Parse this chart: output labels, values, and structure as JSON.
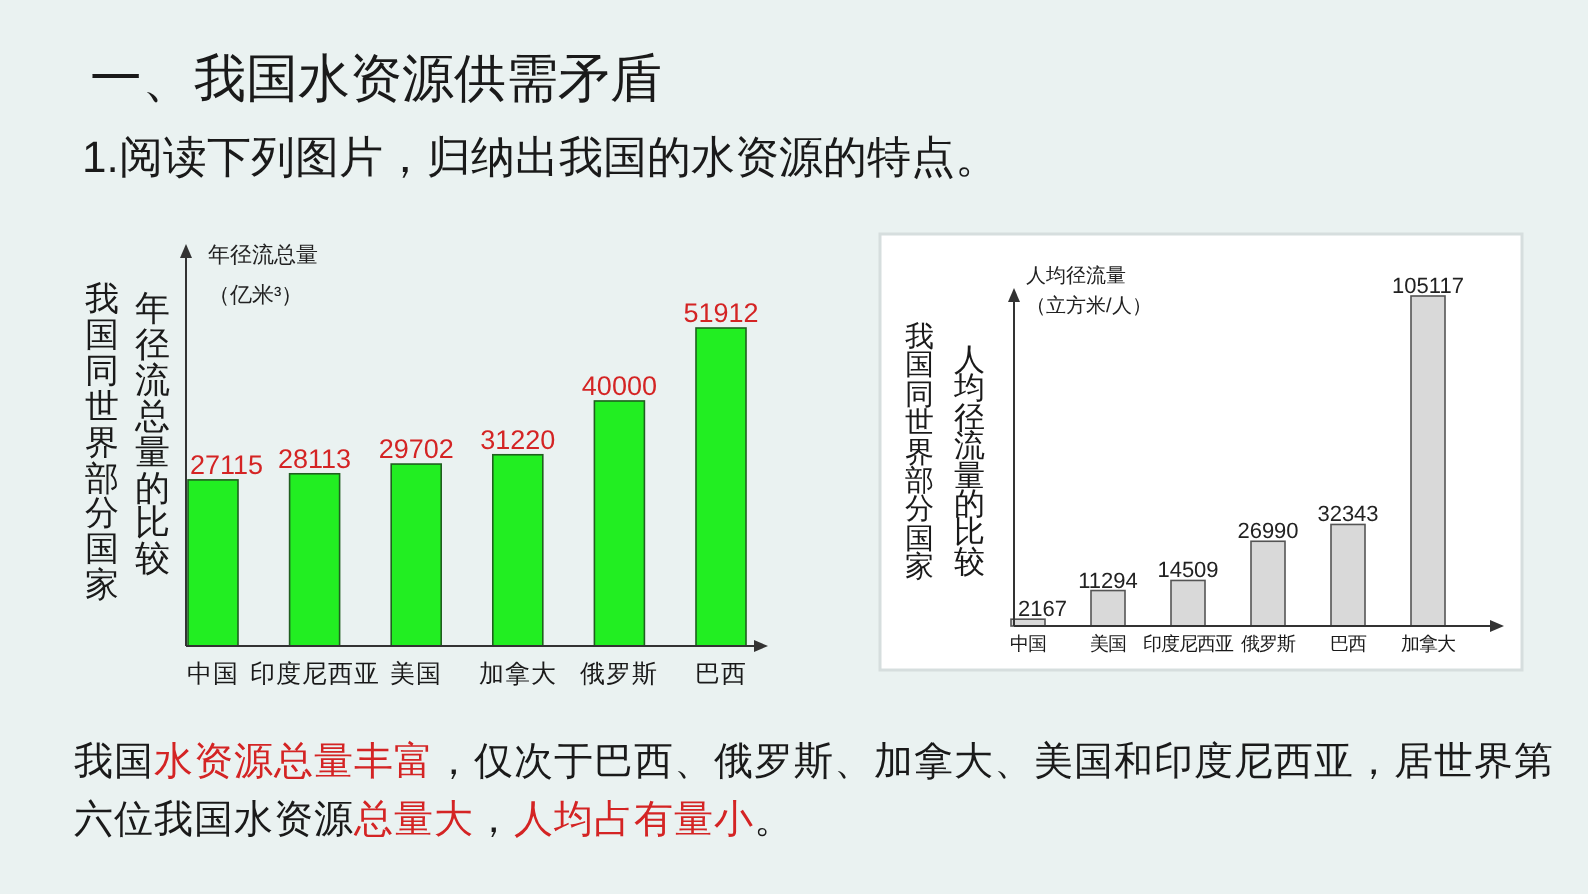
{
  "chart_data": [
    {
      "type": "bar",
      "title": "我国同世界部分国家",
      "subtitle": "年径流总量的比较",
      "ylabel": "年径流总量（亿米³）",
      "categories": [
        "中国",
        "印度尼西亚",
        "美国",
        "加拿大",
        "俄罗斯",
        "巴西"
      ],
      "values": [
        27115,
        28113,
        29702,
        31220,
        40000,
        51912
      ],
      "color": "#22ee22",
      "data_labels": true,
      "annotations": [
        "一、我国水资源供需矛盾",
        "1.阅读下列图片，归纳出我国的水资源的特点。"
      ]
    },
    {
      "type": "bar",
      "title": "我国同世界部分国家",
      "subtitle": "人均径流量的比较",
      "ylabel": "人均径流量（立方米/人）",
      "categories": [
        "中国",
        "美国",
        "印度尼西亚",
        "俄罗斯",
        "巴西",
        "加拿大"
      ],
      "values": [
        2167,
        11294,
        14509,
        26990,
        32343,
        105117
      ],
      "color": "#d9d9d9",
      "data_labels": true,
      "annotations": [
        "我国",
        "水资源总量丰富",
        "，仅次于巴西、俄罗斯、加拿大、美国和印度尼西亚，居世界第",
        "六位我国水资源",
        "总量大",
        "，",
        "人均占有量小",
        "。"
      ]
    }
  ]
}
